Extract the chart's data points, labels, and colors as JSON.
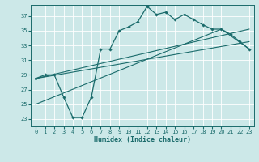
{
  "xlabel": "Humidex (Indice chaleur)",
  "ylabel": "",
  "bg_color": "#cce8e8",
  "line_color": "#1a6b6b",
  "grid_color": "#b0d8d8",
  "xlim": [
    -0.5,
    23.5
  ],
  "ylim": [
    22.0,
    38.5
  ],
  "yticks": [
    23,
    25,
    27,
    29,
    31,
    33,
    35,
    37
  ],
  "xticks": [
    0,
    1,
    2,
    3,
    4,
    5,
    6,
    7,
    8,
    9,
    10,
    11,
    12,
    13,
    14,
    15,
    16,
    17,
    18,
    19,
    20,
    21,
    22,
    23
  ],
  "main_x": [
    0,
    1,
    2,
    3,
    4,
    5,
    6,
    7,
    8,
    9,
    10,
    11,
    12,
    13,
    14,
    15,
    16,
    17,
    18,
    19,
    20,
    21,
    22,
    23
  ],
  "main_y": [
    28.5,
    29.0,
    29.0,
    26.0,
    23.2,
    23.2,
    26.0,
    32.5,
    32.5,
    35.0,
    35.5,
    36.2,
    38.3,
    37.2,
    37.5,
    36.5,
    37.2,
    36.5,
    35.8,
    35.2,
    35.2,
    34.5,
    33.5,
    32.5
  ],
  "line1_x": [
    0,
    23
  ],
  "line1_y": [
    28.5,
    35.2
  ],
  "line2_x": [
    0,
    23
  ],
  "line2_y": [
    28.5,
    33.5
  ],
  "line3_x": [
    0,
    20
  ],
  "line3_y": [
    25.0,
    35.2
  ],
  "line4_x": [
    20,
    23
  ],
  "line4_y": [
    35.2,
    32.5
  ]
}
